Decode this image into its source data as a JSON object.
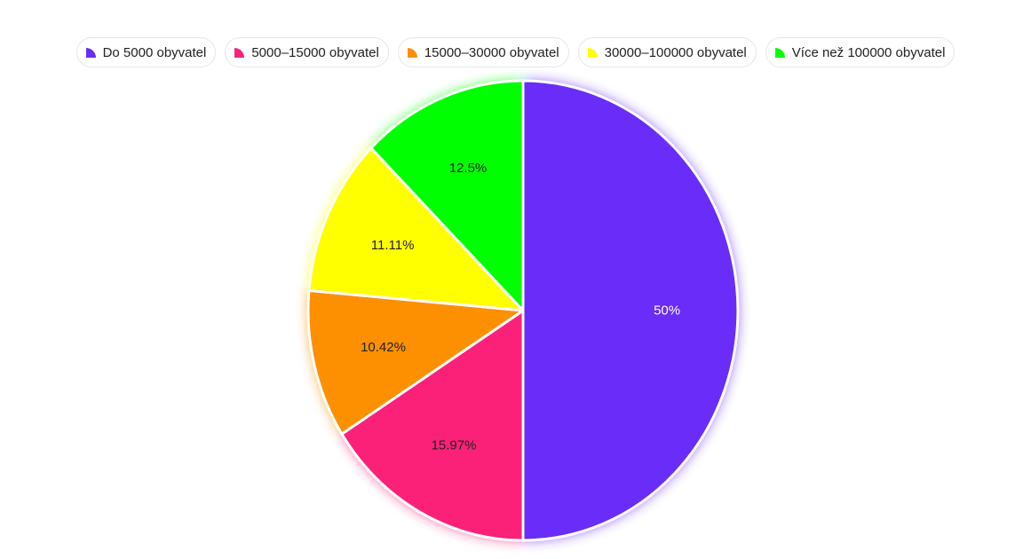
{
  "chart_data": {
    "type": "pie",
    "categories": [
      "Do 5000 obyvatel",
      "5000–15000 obyvatel",
      "15000–30000 obyvatel",
      "30000–100000 obyvatel",
      "Více než 100000 obyvatel"
    ],
    "values": [
      50,
      15.97,
      10.42,
      11.11,
      12.5
    ],
    "labels": [
      "50%",
      "15.97%",
      "10.42%",
      "11.11%",
      "12.5%"
    ],
    "colors": [
      "#6a2cf9",
      "#fb2179",
      "#fd9000",
      "#ffff00",
      "#00ff00"
    ],
    "label_colors": [
      "#ffffff",
      "#222222",
      "#222222",
      "#222222",
      "#222222"
    ],
    "legend_position": "top"
  }
}
